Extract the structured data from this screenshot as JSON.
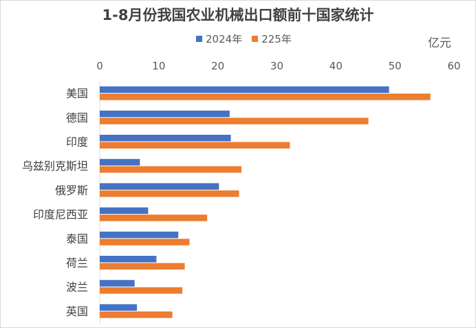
{
  "chart_data": {
    "type": "bar",
    "orientation": "horizontal",
    "title": "1-8月份我国农业机械出口额前十国家统计",
    "unit": "亿元",
    "categories": [
      "美国",
      "德国",
      "印度",
      "乌兹别克斯坦",
      "俄罗斯",
      "印度尼西亚",
      "泰国",
      "荷兰",
      "波兰",
      "英国"
    ],
    "series": [
      {
        "name": "2024年",
        "color": "#4472c4",
        "values": [
          49,
          22,
          22.2,
          6.8,
          20.2,
          8.2,
          13.3,
          9.6,
          5.9,
          6.3
        ]
      },
      {
        "name": "225年",
        "color": "#ed7d31",
        "values": [
          56,
          45.5,
          32.2,
          24,
          23.6,
          18.2,
          15.2,
          14.4,
          14,
          12.3
        ]
      }
    ],
    "xlim": [
      0,
      60
    ],
    "xticks": [
      0,
      10,
      20,
      30,
      40,
      50,
      60
    ],
    "xaxis_position": "top",
    "grid": false,
    "legend_position": "top"
  }
}
